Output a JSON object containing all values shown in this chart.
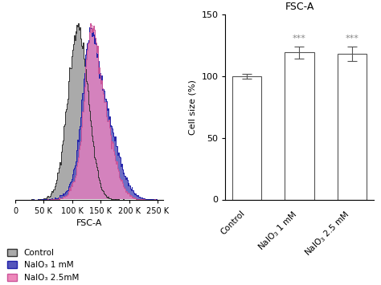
{
  "title_bar": "FSC-A",
  "bar_categories": [
    "Control",
    "NaIO₃ 1 mM",
    "NaIO₃ 2.5 mM"
  ],
  "bar_values": [
    100,
    119,
    118
  ],
  "bar_errors": [
    2,
    5,
    6
  ],
  "bar_color": "#ffffff",
  "bar_edge_color": "#555555",
  "ylabel_bar": "Cell size (%)",
  "ylim_bar": [
    0,
    150
  ],
  "yticks_bar": [
    0,
    50,
    100,
    150
  ],
  "significance_labels": [
    "",
    "***",
    "***"
  ],
  "sig_color": "#888888",
  "hist_xlabel": "FSC-A",
  "hist_xlim": [
    0,
    260000
  ],
  "hist_xticks": [
    0,
    50000,
    100000,
    150000,
    200000,
    250000
  ],
  "hist_xticklabels": [
    "0",
    "50 K",
    "100 K",
    "150 K",
    "200 K",
    "250 K"
  ],
  "control_color": "#aaaaaa",
  "control_edge": "#333333",
  "naio3_1mm_color": "#5555bb",
  "naio3_1mm_edge": "#2222aa",
  "naio3_25mm_color": "#ee88bb",
  "naio3_25mm_edge": "#cc5599",
  "legend_labels": [
    "Control",
    "NaIO₃ 1 mM",
    "NaIO₃ 2.5mM"
  ],
  "legend_colors": [
    "#aaaaaa",
    "#5555bb",
    "#ee88bb"
  ],
  "legend_edge_colors": [
    "#333333",
    "#2222aa",
    "#cc5599"
  ]
}
